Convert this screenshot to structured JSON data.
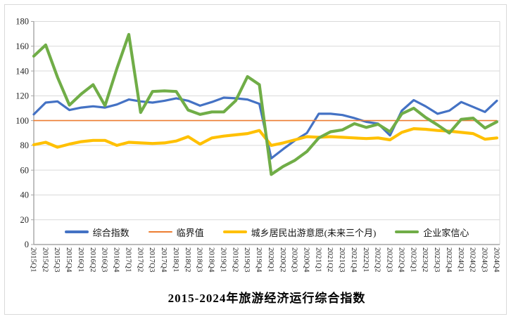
{
  "frame": {
    "border_color": "#d9d9d9",
    "background": "#ffffff"
  },
  "chart_data": {
    "type": "line",
    "title": "2015-2024年旅游经济运行综合指数",
    "xlabel": "",
    "ylabel": "",
    "ylim": [
      0,
      180
    ],
    "y_ticks": [
      0,
      20,
      40,
      60,
      80,
      100,
      120,
      140,
      160,
      180
    ],
    "grid": "horizontal",
    "legend_position": "bottom-inside",
    "grid_color": "#d9d9d9",
    "axis_color": "#a6a6a6",
    "label_color": "#262626",
    "categories": [
      "2015Q1",
      "2015Q2",
      "2015Q3",
      "2015Q4",
      "2016Q1",
      "2016Q2",
      "2016Q3",
      "2016Q4",
      "2017Q1",
      "2017Q2",
      "2017Q3",
      "2017Q4",
      "2018Q1",
      "2018Q2",
      "2018Q3",
      "2018Q4",
      "2019Q1",
      "2019Q2",
      "2019Q3",
      "2019Q4",
      "2020Q1",
      "2020Q2",
      "2020Q3",
      "2020Q4",
      "2021Q1",
      "2021Q2",
      "2021Q3",
      "2021Q4",
      "2022Q1",
      "2022Q2",
      "2022Q3",
      "2022Q4",
      "2023Q1",
      "2023Q2",
      "2023Q3",
      "2023Q4",
      "2024Q1",
      "2024Q2",
      "2024Q3",
      "2024Q4"
    ],
    "series": [
      {
        "id": "composite-index",
        "name": "综合指数",
        "color": "#4472C4",
        "stroke_width": 3.2,
        "values": [
          105,
          114.5,
          115.5,
          108.5,
          110.5,
          111.5,
          110.5,
          113,
          117,
          115.5,
          114.5,
          116,
          118,
          116,
          112,
          115,
          118.5,
          118,
          117,
          113.5,
          69.5,
          77,
          84,
          90,
          105.5,
          105.5,
          104.5,
          102,
          99,
          97.5,
          88,
          108,
          116.5,
          111.5,
          105.5,
          108,
          115,
          111,
          107,
          116
        ]
      },
      {
        "id": "threshold",
        "name": "临界值",
        "color": "#ED7D31",
        "stroke_width": 1.6,
        "values": [
          100,
          100,
          100,
          100,
          100,
          100,
          100,
          100,
          100,
          100,
          100,
          100,
          100,
          100,
          100,
          100,
          100,
          100,
          100,
          100,
          100,
          100,
          100,
          100,
          100,
          100,
          100,
          100,
          100,
          100,
          100,
          100,
          100,
          100,
          100,
          100,
          100,
          100,
          100,
          100
        ]
      },
      {
        "id": "travel-intention",
        "name": "城乡居民出游意愿(未来三个月)",
        "color": "#FFC000",
        "stroke_width": 4.2,
        "values": [
          80.5,
          82.5,
          78.5,
          81,
          83,
          84,
          84,
          80,
          82.5,
          82,
          81.5,
          82,
          83.5,
          87,
          81,
          86,
          87.5,
          88.5,
          89.5,
          92,
          80,
          82,
          84.5,
          87,
          86.5,
          87,
          86.5,
          86,
          85.5,
          86,
          84.5,
          90.5,
          93.5,
          93,
          92,
          91.5,
          90.5,
          89.5,
          85,
          86
        ]
      },
      {
        "id": "entrepreneur-confidence",
        "name": "企业家信心",
        "color": "#70AD47",
        "stroke_width": 4.2,
        "values": [
          152,
          161,
          135,
          112.5,
          121.5,
          129,
          112,
          142,
          169.5,
          106.5,
          123.5,
          124,
          123.5,
          108.5,
          105,
          107,
          107,
          116,
          135.5,
          129,
          56.5,
          63,
          68,
          75,
          86,
          91,
          92.5,
          97.5,
          94.5,
          97,
          91,
          105.5,
          110,
          102.5,
          96.5,
          90,
          101,
          102,
          94,
          99
        ]
      }
    ]
  }
}
